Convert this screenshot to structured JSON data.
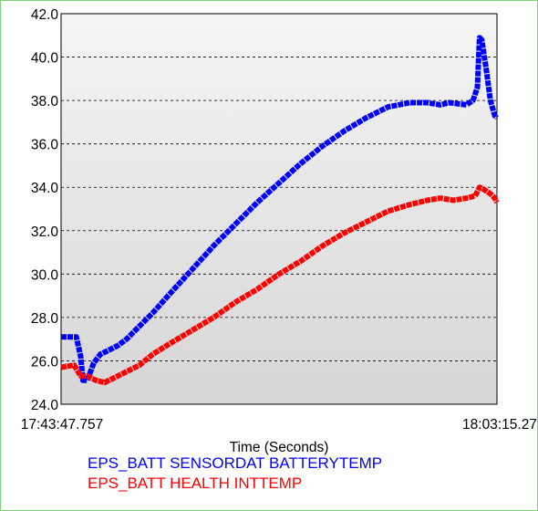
{
  "chart_data": {
    "type": "line",
    "title": "",
    "xlabel": "Time (Seconds)",
    "ylabel": "",
    "x_start_label": "17:43:47.757",
    "x_end_label": "18:03:15.27",
    "ylim": [
      24.0,
      42.0
    ],
    "yticks": [
      "24.0",
      "26.0",
      "28.0",
      "30.0",
      "32.0",
      "34.0",
      "36.0",
      "38.0",
      "40.0",
      "42.0"
    ],
    "grid": true,
    "legend_position": "bottom",
    "background_gradient": [
      "#f5f5f5",
      "#d6d6d6"
    ],
    "series": [
      {
        "name": "EPS_BATT SENSORDAT BATTERYTEMP",
        "color": "#0000ff",
        "x": [
          0.0,
          0.035,
          0.045,
          0.05,
          0.06,
          0.075,
          0.09,
          0.11,
          0.13,
          0.15,
          0.18,
          0.21,
          0.25,
          0.3,
          0.35,
          0.4,
          0.45,
          0.5,
          0.55,
          0.6,
          0.65,
          0.7,
          0.75,
          0.8,
          0.84,
          0.87,
          0.89,
          0.93,
          0.945,
          0.955,
          0.96,
          0.965,
          0.975,
          0.985,
          0.995,
          1.0
        ],
        "y": [
          27.1,
          27.1,
          26.2,
          25.1,
          25.1,
          25.9,
          26.3,
          26.5,
          26.7,
          27.0,
          27.6,
          28.2,
          29.1,
          30.2,
          31.3,
          32.3,
          33.3,
          34.2,
          35.1,
          35.9,
          36.6,
          37.2,
          37.7,
          37.9,
          37.9,
          37.8,
          37.9,
          37.8,
          38.0,
          38.6,
          40.9,
          40.8,
          39.5,
          38.0,
          37.3,
          37.2
        ]
      },
      {
        "name": "EPS_BATT HEALTH INTTEMP",
        "color": "#ff0000",
        "x": [
          0.0,
          0.03,
          0.045,
          0.06,
          0.08,
          0.1,
          0.12,
          0.15,
          0.18,
          0.21,
          0.25,
          0.3,
          0.35,
          0.4,
          0.45,
          0.5,
          0.55,
          0.6,
          0.65,
          0.7,
          0.75,
          0.8,
          0.84,
          0.87,
          0.9,
          0.93,
          0.95,
          0.96,
          0.97,
          0.985,
          0.995,
          1.0
        ],
        "y": [
          25.7,
          25.8,
          25.3,
          25.3,
          25.1,
          25.0,
          25.2,
          25.5,
          25.8,
          26.3,
          26.8,
          27.4,
          28.0,
          28.7,
          29.3,
          30.0,
          30.6,
          31.3,
          31.9,
          32.4,
          32.9,
          33.2,
          33.4,
          33.5,
          33.4,
          33.5,
          33.6,
          34.0,
          33.9,
          33.7,
          33.5,
          33.3
        ]
      }
    ]
  }
}
